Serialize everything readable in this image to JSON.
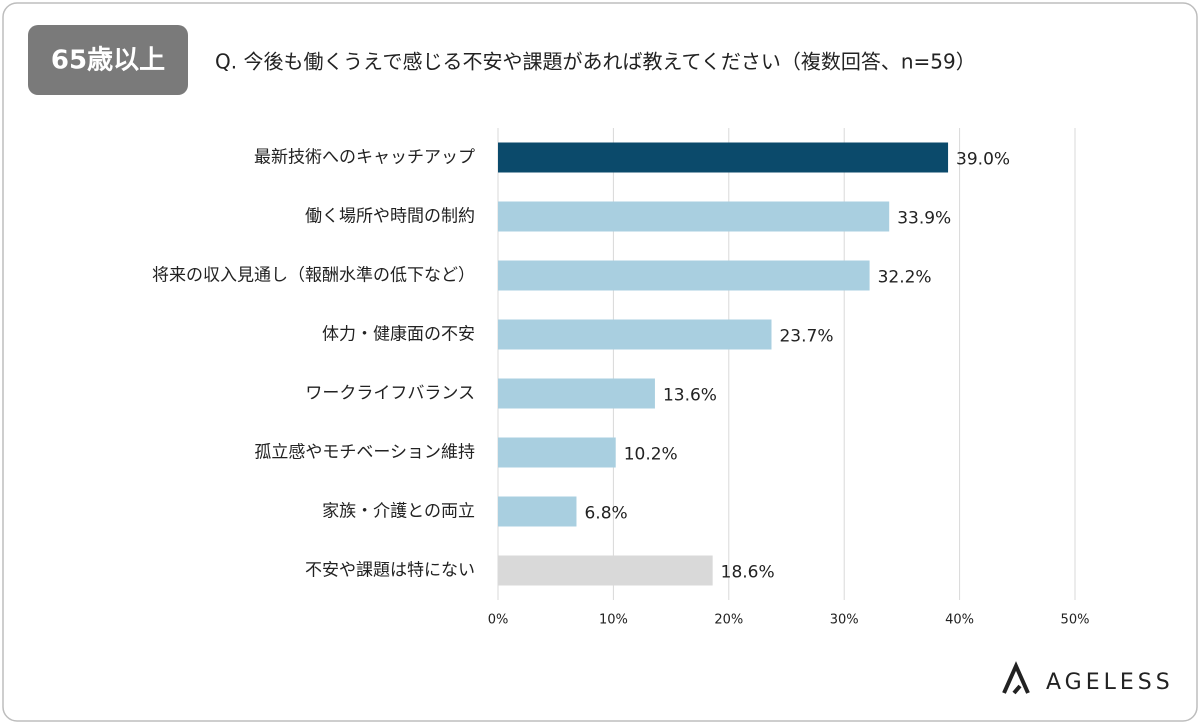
{
  "badge": "65歳以上",
  "logo": "AGELESS",
  "chart_data": {
    "type": "bar",
    "orientation": "horizontal",
    "title": "Q. 今後も働くうえで感じる不安や課題があれば教えてください（複数回答、n=59）",
    "categories": [
      "最新技術へのキャッチアップ",
      "働く場所や時間の制約",
      "将来の収入見通し（報酬水準の低下など）",
      "体力・健康面の不安",
      "ワークライフバランス",
      "孤立感やモチベーション維持",
      "家族・介護との両立",
      "不安や課題は特にない"
    ],
    "values": [
      39.0,
      33.9,
      32.2,
      23.7,
      13.6,
      10.2,
      6.8,
      18.6
    ],
    "value_labels": [
      "39.0%",
      "33.9%",
      "32.2%",
      "23.7%",
      "13.6%",
      "10.2%",
      "6.8%",
      "18.6%"
    ],
    "colors": [
      "#0b4a6b",
      "#a9cfe0",
      "#a9cfe0",
      "#a9cfe0",
      "#a9cfe0",
      "#a9cfe0",
      "#a9cfe0",
      "#d9d9d9"
    ],
    "xlim": [
      0,
      50
    ],
    "xticks": [
      {
        "value": 0,
        "label": "0%"
      },
      {
        "value": 10,
        "label": "10%"
      },
      {
        "value": 20,
        "label": "20%"
      },
      {
        "value": 30,
        "label": "30%"
      },
      {
        "value": 40,
        "label": "40%"
      },
      {
        "value": 50,
        "label": "50%"
      }
    ],
    "grid": true
  }
}
